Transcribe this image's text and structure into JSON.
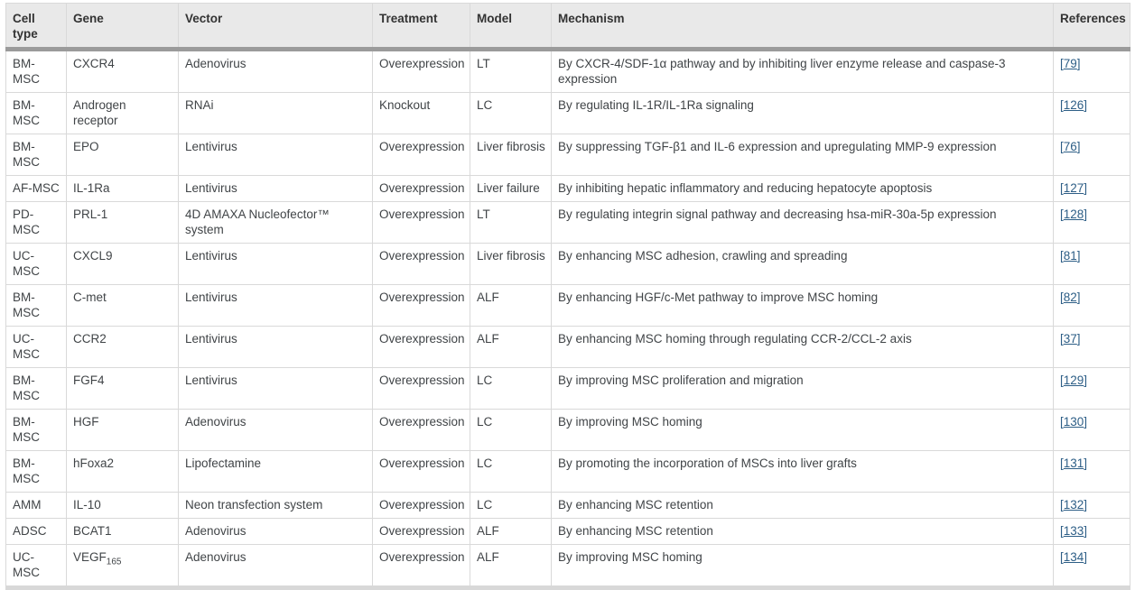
{
  "colors": {
    "header_bg": "#e9e9e9",
    "header_text": "#333333",
    "header_border": "#9b9b9b",
    "bottom_border": "#d8d8d8",
    "grid_border": "#d9d9d9",
    "text": "#404447",
    "link": "#2d5e86"
  },
  "table": {
    "columns": [
      {
        "label": "Cell type"
      },
      {
        "label": "Gene"
      },
      {
        "label": "Vector"
      },
      {
        "label": "Treatment"
      },
      {
        "label": "Model"
      },
      {
        "label": "Mechanism"
      },
      {
        "label": "References"
      }
    ],
    "reference_format": {
      "open": "[",
      "close": "]"
    },
    "rows": [
      {
        "cell_type": "BM-MSC",
        "gene": "CXCR4",
        "vector": "Adenovirus",
        "treatment": "Overexpression",
        "model": "LT",
        "mechanism": "By CXCR-4/SDF-1α pathway and by inhibiting liver enzyme release and caspase-3 expression",
        "reference": "79"
      },
      {
        "cell_type": "BM-MSC",
        "gene": "Androgen receptor",
        "vector": "RNAi",
        "treatment": "Knockout",
        "model": "LC",
        "mechanism": "By regulating IL-1R/IL-1Ra signaling",
        "reference": "126"
      },
      {
        "cell_type": "BM-MSC",
        "gene": "EPO",
        "vector": "Lentivirus",
        "treatment": "Overexpression",
        "model": "Liver fibrosis",
        "mechanism": "By suppressing TGF-β1 and IL-6 expression and upregulating MMP-9 expression",
        "reference": "76"
      },
      {
        "cell_type": "AF-MSC",
        "gene": "IL-1Ra",
        "vector": "Lentivirus",
        "treatment": "Overexpression",
        "model": "Liver failure",
        "mechanism": "By inhibiting hepatic inflammatory and reducing hepatocyte apoptosis",
        "reference": "127"
      },
      {
        "cell_type": "PD-MSC",
        "gene": "PRL-1",
        "vector": "4D AMAXA Nucleofector™ system",
        "treatment": "Overexpression",
        "model": "LT",
        "mechanism": "By regulating integrin signal pathway and decreasing hsa-miR-30a-5p expression",
        "reference": "128"
      },
      {
        "cell_type": "UC-MSC",
        "gene": "CXCL9",
        "vector": "Lentivirus",
        "treatment": "Overexpression",
        "model": "Liver fibrosis",
        "mechanism": "By enhancing MSC adhesion, crawling and spreading",
        "reference": "81"
      },
      {
        "cell_type": "BM-MSC",
        "gene": "C-met",
        "vector": "Lentivirus",
        "treatment": "Overexpression",
        "model": "ALF",
        "mechanism": "By enhancing HGF/c-Met pathway to improve MSC homing",
        "reference": "82"
      },
      {
        "cell_type": "UC-MSC",
        "gene": "CCR2",
        "vector": "Lentivirus",
        "treatment": "Overexpression",
        "model": "ALF",
        "mechanism": "By enhancing MSC homing through regulating CCR-2/CCL-2 axis",
        "reference": "37"
      },
      {
        "cell_type": "BM-MSC",
        "gene": "FGF4",
        "vector": "Lentivirus",
        "treatment": "Overexpression",
        "model": "LC",
        "mechanism": "By improving MSC proliferation and migration",
        "reference": "129"
      },
      {
        "cell_type": "BM-MSC",
        "gene": "HGF",
        "vector": "Adenovirus",
        "treatment": "Overexpression",
        "model": "LC",
        "mechanism": "By improving MSC homing",
        "reference": "130"
      },
      {
        "cell_type": "BM-MSC",
        "gene": "hFoxa2",
        "vector": "Lipofectamine",
        "treatment": "Overexpression",
        "model": "LC",
        "mechanism": "By promoting the incorporation of MSCs into liver grafts",
        "reference": "131"
      },
      {
        "cell_type": "AMM",
        "gene": "IL-10",
        "vector": "Neon transfection system",
        "treatment": "Overexpression",
        "model": "LC",
        "mechanism": "By enhancing MSC retention",
        "reference": "132"
      },
      {
        "cell_type": "ADSC",
        "gene": "BCAT1",
        "vector": "Adenovirus",
        "treatment": "Overexpression",
        "model": "ALF",
        "mechanism": "By enhancing MSC retention",
        "reference": "133"
      },
      {
        "cell_type": "UC-MSC",
        "gene": "VEGF",
        "gene_sub": "165",
        "vector": "Adenovirus",
        "treatment": "Overexpression",
        "model": "ALF",
        "mechanism": "By improving MSC homing",
        "reference": "134"
      }
    ]
  }
}
